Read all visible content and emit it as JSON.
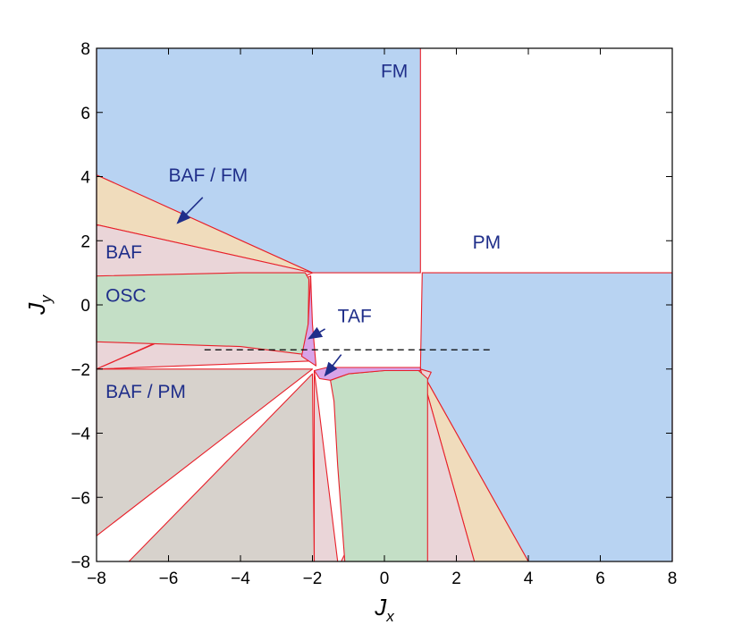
{
  "chart_data": {
    "type": "area",
    "xlabel": "J",
    "xlabel_sub": "x",
    "ylabel": "J",
    "ylabel_sub": "y",
    "xlim": [
      -8,
      8
    ],
    "ylim": [
      -8,
      8
    ],
    "xticks": [
      -8,
      -6,
      -4,
      -2,
      0,
      2,
      4,
      6,
      8
    ],
    "yticks": [
      -8,
      -6,
      -4,
      -2,
      0,
      2,
      4,
      6,
      8
    ],
    "xtick_labels": [
      "−8",
      "−6",
      "−4",
      "−2",
      "0",
      "2",
      "4",
      "6",
      "8"
    ],
    "ytick_labels": [
      "−8",
      "−6",
      "−4",
      "−2",
      "0",
      "2",
      "4",
      "6",
      "8"
    ],
    "grid": false,
    "colors": {
      "fm": "#b8d3f2",
      "baf": "#ead5d8",
      "baf_fm": "#f0dcbc",
      "osc": "#c4dfc6",
      "baf_pm": "#d7d2cc",
      "taf": "#d8a4e8",
      "boundary": "#e8202a",
      "label": "#1f2e8a"
    },
    "regions": [
      {
        "name": "FM",
        "color_key": "fm",
        "polygons": [
          [
            [
              -8,
              8
            ],
            [
              1,
              8
            ],
            [
              1,
              1
            ],
            [
              -2,
              1
            ],
            [
              -8,
              4.05
            ]
          ],
          [
            [
              1.05,
              1
            ],
            [
              8,
              1
            ],
            [
              8,
              -8
            ],
            [
              4,
              -8
            ],
            [
              1,
              -2
            ],
            [
              1.05,
              1
            ]
          ]
        ]
      },
      {
        "name": "BAF / FM",
        "color_key": "baf_fm",
        "polygons": [
          [
            [
              -8,
              4.05
            ],
            [
              -2,
              1
            ],
            [
              -8,
              2.5
            ]
          ],
          [
            [
              1,
              -2
            ],
            [
              4,
              -8
            ],
            [
              2.5,
              -8
            ]
          ]
        ]
      },
      {
        "name": "BAF",
        "color_key": "baf",
        "polygons": [
          [
            [
              -8,
              2.5
            ],
            [
              -2,
              1
            ],
            [
              -8,
              -2
            ]
          ],
          [
            [
              -2.05,
              0.9
            ],
            [
              -2.05,
              -1.75
            ],
            [
              -8,
              -2
            ]
          ],
          [
            [
              1,
              -2
            ],
            [
              2.5,
              -8
            ],
            [
              -1.2,
              -8
            ],
            [
              1.3,
              -2.1
            ]
          ],
          [
            [
              -1.95,
              -2.05
            ],
            [
              -1.3,
              -8
            ],
            [
              -1.95,
              -8
            ]
          ]
        ]
      },
      {
        "name": "OSC",
        "color_key": "osc",
        "polygons": [
          [
            [
              -8,
              0.9
            ],
            [
              -4,
              1.0
            ],
            [
              -2.2,
              1.0
            ],
            [
              -2.1,
              0.8
            ],
            [
              -2.12,
              -0.6
            ],
            [
              -2.2,
              -1.55
            ],
            [
              -4,
              -1.3
            ],
            [
              -8,
              -1.15
            ]
          ],
          [
            [
              -1.5,
              -2.35
            ],
            [
              -1.0,
              -2.15
            ],
            [
              0,
              -2.05
            ],
            [
              0.95,
              -2.05
            ],
            [
              1.2,
              -2.3
            ],
            [
              1.2,
              -8
            ],
            [
              -1.1,
              -8
            ],
            [
              -1.3,
              -5
            ],
            [
              -1.4,
              -3
            ]
          ]
        ]
      },
      {
        "name": "TAF",
        "color_key": "taf",
        "polygons": [
          [
            [
              -2.05,
              0.9
            ],
            [
              -2.0,
              -0.6
            ],
            [
              -1.9,
              -1.9
            ],
            [
              -2.3,
              -1.6
            ],
            [
              -2.12,
              -0.6
            ]
          ],
          [
            [
              -1.95,
              -2.05
            ],
            [
              -1.6,
              -1.95
            ],
            [
              1.0,
              -1.95
            ],
            [
              1.0,
              -2.05
            ],
            [
              0,
              -2.05
            ],
            [
              -1.0,
              -2.15
            ],
            [
              -1.5,
              -2.35
            ],
            [
              -1.8,
              -2.3
            ]
          ]
        ]
      },
      {
        "name": "BAF / PM",
        "color_key": "baf_pm",
        "polygons": [
          [
            [
              -8,
              -2
            ],
            [
              -2.0,
              -2
            ],
            [
              -8,
              -7.2
            ]
          ],
          [
            [
              -2.0,
              -2.15
            ],
            [
              -1.95,
              -8
            ],
            [
              -7.1,
              -8
            ]
          ]
        ]
      }
    ],
    "labels": [
      {
        "text": "FM",
        "x": -0.1,
        "y": 7.1
      },
      {
        "text": "PM",
        "x": 2.45,
        "y": 1.75
      },
      {
        "text": "BAF / FM",
        "x": -6.0,
        "y": 3.85
      },
      {
        "text": "BAF",
        "x": -7.75,
        "y": 1.45
      },
      {
        "text": "OSC",
        "x": -7.75,
        "y": 0.1
      },
      {
        "text": "TAF",
        "x": -1.3,
        "y": -0.55
      },
      {
        "text": "BAF / PM",
        "x": -7.75,
        "y": -2.9
      }
    ],
    "dashed_line": {
      "y": -1.4,
      "x_from": -5.0,
      "x_to": 3.0
    }
  }
}
